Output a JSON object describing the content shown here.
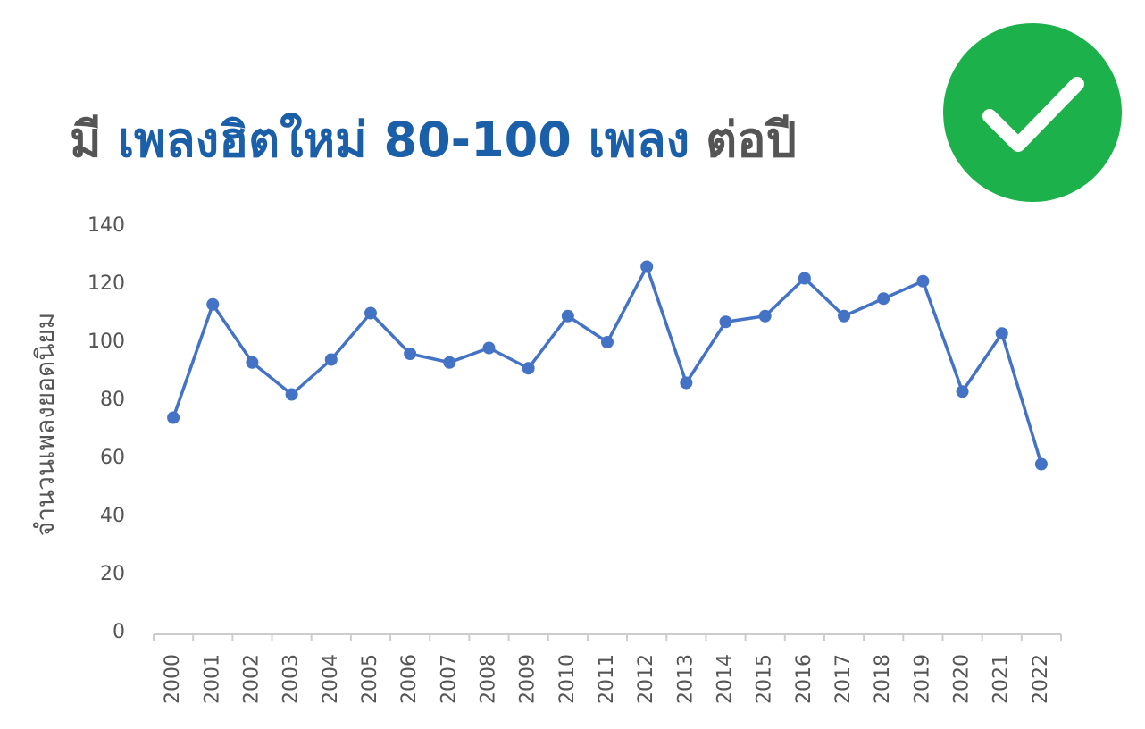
{
  "chart_data": {
    "type": "line",
    "title": [
      {
        "text": "มี",
        "color": "#555555"
      },
      {
        "text": "เพลงฮิตใหม่ 80-100 เพลง",
        "color": "#1a5fa8"
      },
      {
        "text": "ต่อปี",
        "color": "#555555"
      }
    ],
    "y_label": "จำนวนเพลงยอดนิยม",
    "categories": [
      "2000",
      "2001",
      "2002",
      "2003",
      "2004",
      "2005",
      "2006",
      "2007",
      "2008",
      "2009",
      "2010",
      "2011",
      "2012",
      "2013",
      "2014",
      "2015",
      "2016",
      "2017",
      "2018",
      "2019",
      "2020",
      "2021",
      "2022"
    ],
    "series": [
      {
        "name": "จำนวนเพลงยอดนิยม",
        "color": "#4472c4",
        "values": [
          74,
          113,
          93,
          82,
          94,
          110,
          96,
          93,
          98,
          91,
          109,
          100,
          126,
          86,
          107,
          109,
          122,
          109,
          115,
          121,
          83,
          103,
          58
        ]
      }
    ],
    "ylim": [
      0,
      140
    ],
    "yticks": [
      0,
      20,
      40,
      60,
      80,
      100,
      120,
      140
    ],
    "grid": false
  }
}
